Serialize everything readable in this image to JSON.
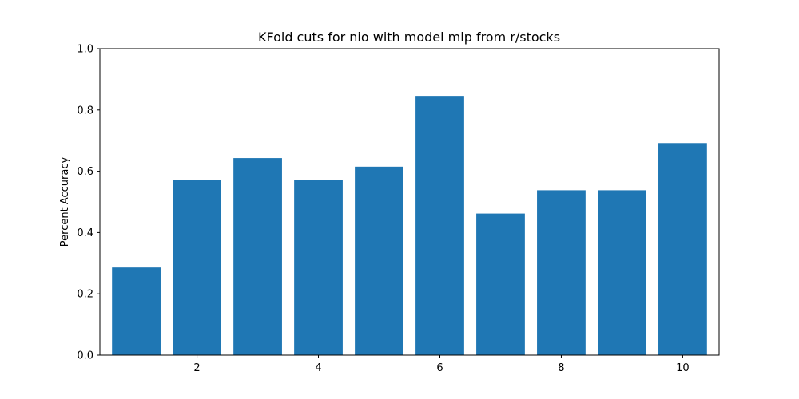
{
  "chart_data": {
    "type": "bar",
    "title": "KFold cuts for nio with model mlp from r/stocks",
    "xlabel": "",
    "ylabel": "Percent Accuracy",
    "x": [
      1,
      2,
      3,
      4,
      5,
      6,
      7,
      8,
      9,
      10
    ],
    "values": [
      0.286,
      0.571,
      0.643,
      0.571,
      0.615,
      0.846,
      0.462,
      0.538,
      0.538,
      0.692
    ],
    "xlim": [
      0.4,
      10.6
    ],
    "ylim": [
      0,
      1.0
    ],
    "xticks": [
      2,
      4,
      6,
      8,
      10
    ],
    "xtick_labels": [
      "2",
      "4",
      "6",
      "8",
      "10"
    ],
    "yticks": [
      0,
      0.2,
      0.4,
      0.6,
      0.8,
      1.0
    ],
    "ytick_labels": [
      "0.0",
      "0.2",
      "0.4",
      "0.6",
      "0.8",
      "1.0"
    ],
    "bar_color": "#1f77b4",
    "grid": false,
    "legend": false
  }
}
